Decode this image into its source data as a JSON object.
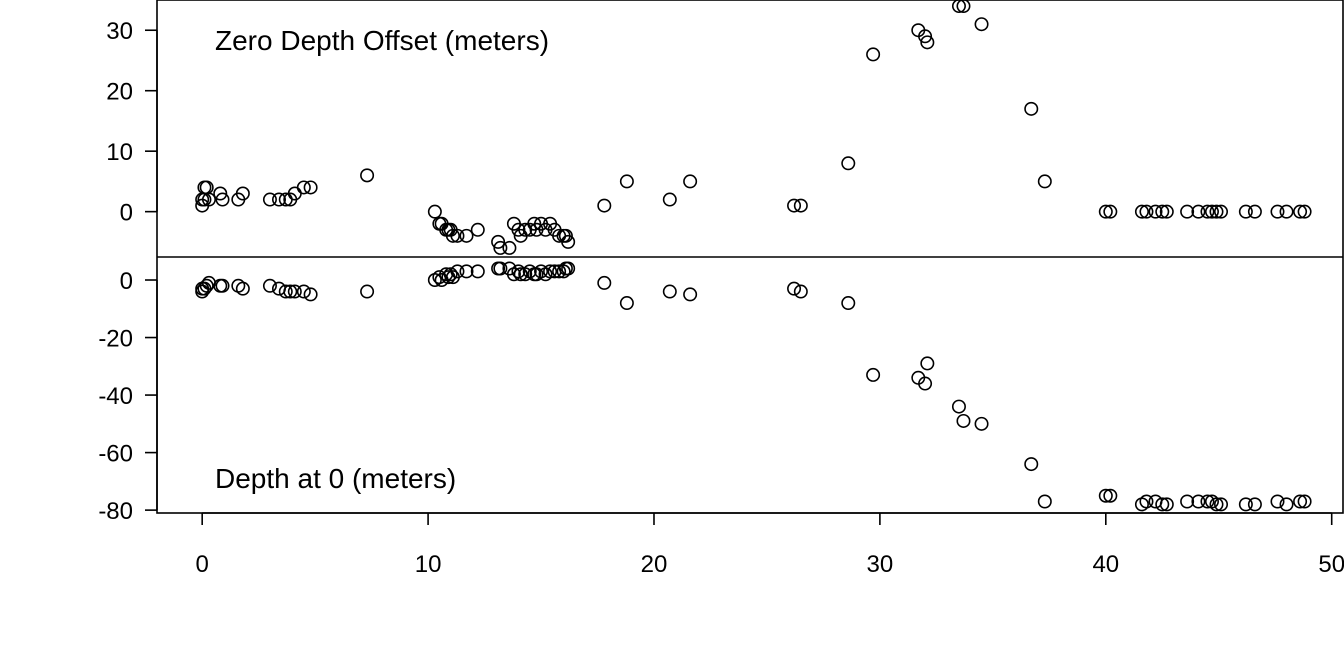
{
  "chart_data": [
    {
      "type": "scatter",
      "panel": "top",
      "title": "Zero Depth Offset (meters)",
      "xlabel": "",
      "ylabel": "",
      "xlim": [
        -2,
        50.5
      ],
      "ylim": [
        -7.5,
        35
      ],
      "x_ticks": [
        0,
        10,
        20,
        30,
        40,
        50
      ],
      "y_ticks": [
        0,
        10,
        20,
        30
      ],
      "grid": false,
      "marker": "open-circle",
      "series": [
        {
          "points": [
            [
              0,
              2
            ],
            [
              0,
              1
            ],
            [
              0.1,
              2
            ],
            [
              0.1,
              4
            ],
            [
              0.2,
              4
            ],
            [
              0.3,
              2
            ],
            [
              0.8,
              3
            ],
            [
              0.9,
              2
            ],
            [
              1.6,
              2
            ],
            [
              1.8,
              3
            ],
            [
              3.0,
              2
            ],
            [
              3.4,
              2
            ],
            [
              3.7,
              2
            ],
            [
              3.9,
              2
            ],
            [
              4.1,
              3
            ],
            [
              4.5,
              4
            ],
            [
              4.8,
              4
            ],
            [
              7.3,
              6
            ],
            [
              10.3,
              0
            ],
            [
              10.5,
              -2
            ],
            [
              10.6,
              -2
            ],
            [
              10.8,
              -3
            ],
            [
              10.9,
              -3
            ],
            [
              11.0,
              -3
            ],
            [
              11.1,
              -4
            ],
            [
              11.3,
              -4
            ],
            [
              11.7,
              -4
            ],
            [
              12.2,
              -3
            ],
            [
              13.1,
              -5
            ],
            [
              13.2,
              -6
            ],
            [
              13.6,
              -6
            ],
            [
              13.8,
              -2
            ],
            [
              14.0,
              -3
            ],
            [
              14.1,
              -4
            ],
            [
              14.3,
              -3
            ],
            [
              14.5,
              -3
            ],
            [
              14.7,
              -2
            ],
            [
              14.8,
              -3
            ],
            [
              15.0,
              -2
            ],
            [
              15.2,
              -3
            ],
            [
              15.4,
              -2
            ],
            [
              15.6,
              -3
            ],
            [
              15.8,
              -4
            ],
            [
              16.0,
              -4
            ],
            [
              16.1,
              -4
            ],
            [
              16.2,
              -5
            ],
            [
              17.8,
              1
            ],
            [
              18.8,
              5
            ],
            [
              20.7,
              2
            ],
            [
              21.6,
              5
            ],
            [
              26.2,
              1
            ],
            [
              26.5,
              1
            ],
            [
              28.6,
              8
            ],
            [
              29.7,
              26
            ],
            [
              31.7,
              30
            ],
            [
              32.0,
              29
            ],
            [
              32.1,
              28
            ],
            [
              33.5,
              34
            ],
            [
              33.7,
              34
            ],
            [
              34.5,
              31
            ],
            [
              36.7,
              17
            ],
            [
              37.3,
              5
            ],
            [
              40.0,
              0
            ],
            [
              40.2,
              0
            ],
            [
              41.6,
              0
            ],
            [
              41.8,
              0
            ],
            [
              42.2,
              0
            ],
            [
              42.5,
              0
            ],
            [
              42.7,
              0
            ],
            [
              43.6,
              0
            ],
            [
              44.1,
              0
            ],
            [
              44.5,
              0
            ],
            [
              44.7,
              0
            ],
            [
              44.9,
              0
            ],
            [
              45.1,
              0
            ],
            [
              46.2,
              0
            ],
            [
              46.6,
              0
            ],
            [
              47.6,
              0
            ],
            [
              48.0,
              0
            ],
            [
              48.6,
              0
            ],
            [
              48.8,
              0
            ]
          ]
        }
      ]
    },
    {
      "type": "scatter",
      "panel": "bottom",
      "title": "Depth at 0 (meters)",
      "xlabel": "",
      "ylabel": "",
      "xlim": [
        -2,
        50.5
      ],
      "ylim": [
        -81,
        8
      ],
      "x_ticks": [
        0,
        10,
        20,
        30,
        40,
        50
      ],
      "y_ticks": [
        0,
        -20,
        -40,
        -60,
        -80
      ],
      "grid": false,
      "marker": "open-circle",
      "series": [
        {
          "points": [
            [
              0,
              -3
            ],
            [
              0,
              -4
            ],
            [
              0.1,
              -3
            ],
            [
              0.2,
              -2
            ],
            [
              0.3,
              -1
            ],
            [
              0.8,
              -2
            ],
            [
              0.9,
              -2
            ],
            [
              1.6,
              -2
            ],
            [
              1.8,
              -3
            ],
            [
              3.0,
              -2
            ],
            [
              3.4,
              -3
            ],
            [
              3.7,
              -4
            ],
            [
              3.9,
              -4
            ],
            [
              4.1,
              -4
            ],
            [
              4.5,
              -4
            ],
            [
              4.8,
              -5
            ],
            [
              7.3,
              -4
            ],
            [
              10.3,
              0
            ],
            [
              10.5,
              1
            ],
            [
              10.6,
              0
            ],
            [
              10.8,
              2
            ],
            [
              10.9,
              1
            ],
            [
              11.0,
              2
            ],
            [
              11.1,
              1
            ],
            [
              11.3,
              3
            ],
            [
              11.7,
              3
            ],
            [
              12.2,
              3
            ],
            [
              13.1,
              4
            ],
            [
              13.2,
              4
            ],
            [
              13.6,
              4
            ],
            [
              13.8,
              2
            ],
            [
              14.0,
              3
            ],
            [
              14.1,
              2
            ],
            [
              14.3,
              2
            ],
            [
              14.5,
              3
            ],
            [
              14.7,
              2
            ],
            [
              14.8,
              2
            ],
            [
              15.0,
              3
            ],
            [
              15.2,
              2
            ],
            [
              15.4,
              3
            ],
            [
              15.6,
              3
            ],
            [
              15.8,
              3
            ],
            [
              16.0,
              3
            ],
            [
              16.1,
              4
            ],
            [
              16.2,
              4
            ],
            [
              17.8,
              -1
            ],
            [
              18.8,
              -8
            ],
            [
              20.7,
              -4
            ],
            [
              21.6,
              -5
            ],
            [
              26.2,
              -3
            ],
            [
              26.5,
              -4
            ],
            [
              28.6,
              -8
            ],
            [
              29.7,
              -33
            ],
            [
              31.7,
              -34
            ],
            [
              32.0,
              -36
            ],
            [
              32.1,
              -29
            ],
            [
              33.5,
              -44
            ],
            [
              33.7,
              -49
            ],
            [
              34.5,
              -50
            ],
            [
              36.7,
              -64
            ],
            [
              37.3,
              -77
            ],
            [
              40.0,
              -75
            ],
            [
              40.2,
              -75
            ],
            [
              41.6,
              -78
            ],
            [
              41.8,
              -77
            ],
            [
              42.2,
              -77
            ],
            [
              42.5,
              -78
            ],
            [
              42.7,
              -78
            ],
            [
              43.6,
              -77
            ],
            [
              44.1,
              -77
            ],
            [
              44.5,
              -77
            ],
            [
              44.7,
              -77
            ],
            [
              44.9,
              -78
            ],
            [
              45.1,
              -78
            ],
            [
              46.2,
              -78
            ],
            [
              46.6,
              -78
            ],
            [
              47.6,
              -77
            ],
            [
              48.0,
              -78
            ],
            [
              48.6,
              -77
            ],
            [
              48.8,
              -77
            ]
          ]
        }
      ]
    }
  ]
}
